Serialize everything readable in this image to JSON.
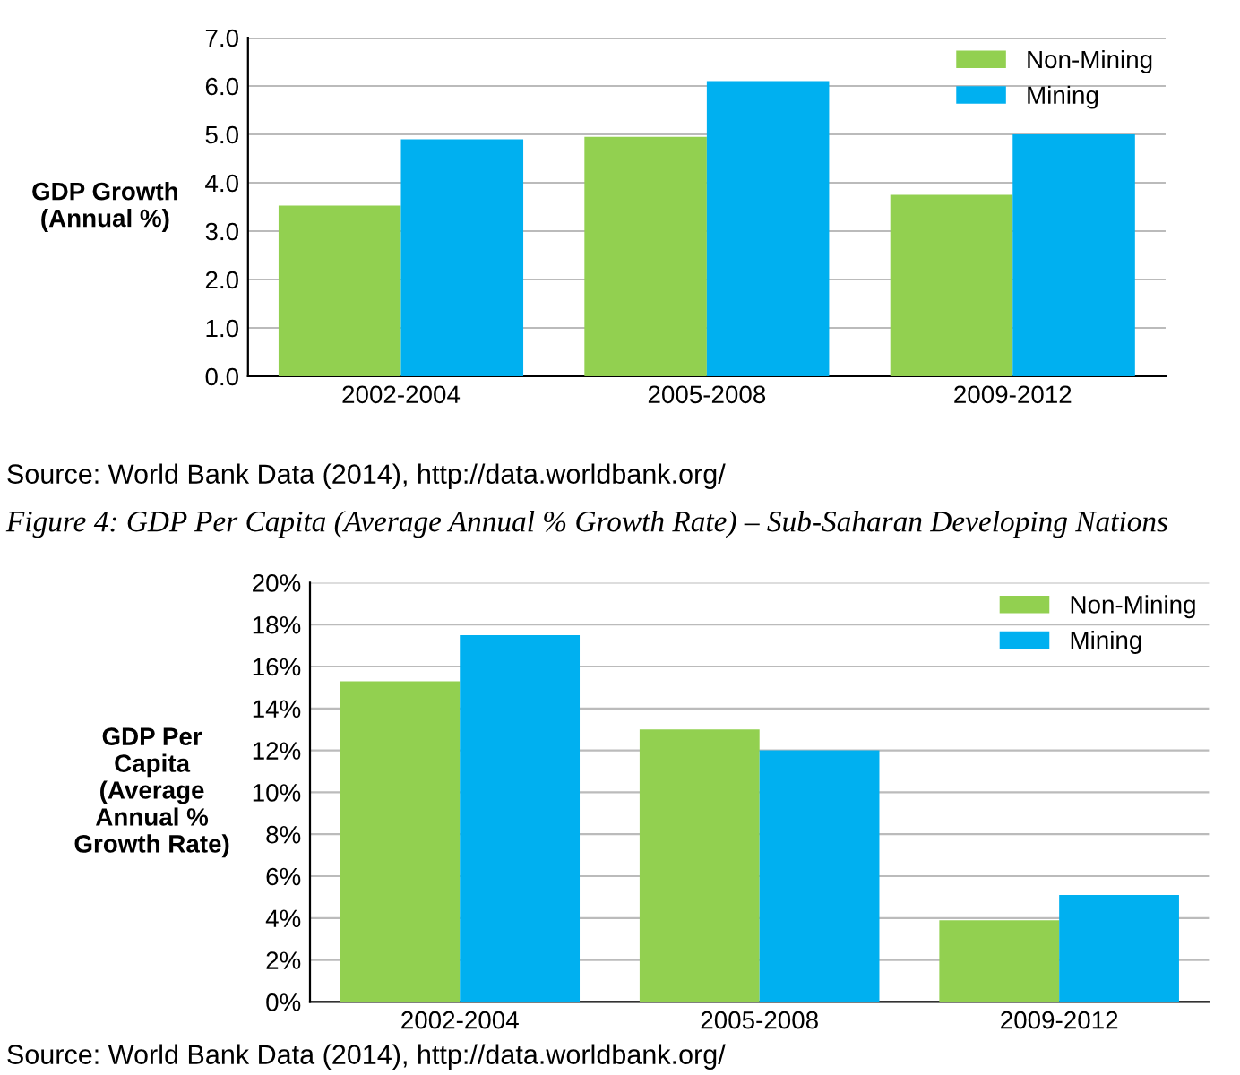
{
  "chart_data": [
    {
      "type": "bar",
      "ylabel": "GDP Growth\n(Annual %)",
      "categories": [
        "2002-2004",
        "2005-2008",
        "2009-2012"
      ],
      "series": [
        {
          "name": "Non-Mining",
          "color": "#92d050",
          "values": [
            3.53,
            4.95,
            3.75
          ]
        },
        {
          "name": "Mining",
          "color": "#00b0f0",
          "values": [
            4.9,
            6.1,
            5.0
          ]
        }
      ],
      "ylim": [
        0,
        7
      ],
      "yticks": [
        {
          "value": 0,
          "label": "0.0"
        },
        {
          "value": 1,
          "label": "1.0"
        },
        {
          "value": 2,
          "label": "2.0"
        },
        {
          "value": 3,
          "label": "3.0"
        },
        {
          "value": 4,
          "label": "4.0"
        },
        {
          "value": 5,
          "label": "5.0"
        },
        {
          "value": 6,
          "label": "6.0"
        },
        {
          "value": 7,
          "label": "7.0"
        }
      ],
      "grid": "y",
      "legend": "top right",
      "annotations": [
        "Source: World Bank Data (2014), http://data.worldbank.org/"
      ]
    },
    {
      "type": "bar",
      "title": "Figure 4: GDP Per Capita (Average Annual % Growth Rate) – Sub-Saharan Developing Nations",
      "ylabel": "GDP Per\nCapita\n(Average\nAnnual %\nGrowth Rate)",
      "categories": [
        "2002-2004",
        "2005-2008",
        "2009-2012"
      ],
      "series": [
        {
          "name": "Non-Mining",
          "color": "#92d050",
          "values": [
            15.3,
            13.0,
            3.9
          ]
        },
        {
          "name": "Mining",
          "color": "#00b0f0",
          "values": [
            17.5,
            12.0,
            5.1
          ]
        }
      ],
      "ylim": [
        0,
        20
      ],
      "yticks": [
        {
          "value": 0,
          "label": "0%"
        },
        {
          "value": 2,
          "label": "2%"
        },
        {
          "value": 4,
          "label": "4%"
        },
        {
          "value": 6,
          "label": "6%"
        },
        {
          "value": 8,
          "label": "8%"
        },
        {
          "value": 10,
          "label": "10%"
        },
        {
          "value": 12,
          "label": "12%"
        },
        {
          "value": 14,
          "label": "14%"
        },
        {
          "value": 16,
          "label": "16%"
        },
        {
          "value": 18,
          "label": "18%"
        },
        {
          "value": 20,
          "label": "20%"
        }
      ],
      "grid": "y",
      "legend": "top right",
      "annotations": [
        "Source: World Bank Data (2014), http://data.worldbank.org/"
      ]
    }
  ]
}
